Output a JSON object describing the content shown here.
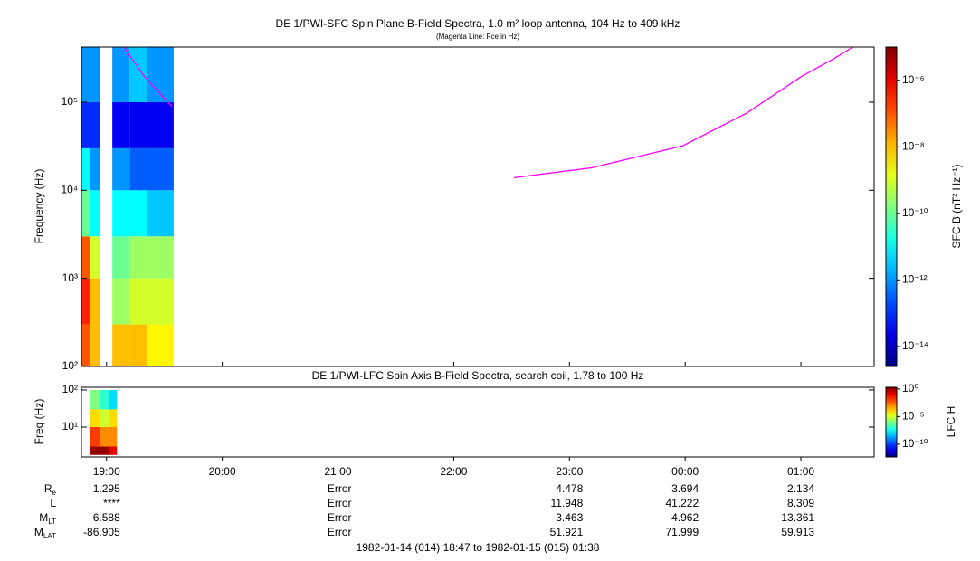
{
  "chart_data": [
    {
      "type": "heatmap",
      "title": "DE 1/PWI-SFC  Spin Plane B-Field Spectra, 1.0 m² loop antenna, 104 Hz to 409 kHz",
      "subtitle": "(Magenta Line: Fce in Hz)",
      "y_label": "Frequency (Hz)",
      "colorbar_label": "SFC B (nT² Hz⁻¹)",
      "log_y": true,
      "xlim": [
        18.783,
        25.633
      ],
      "ylim": [
        100,
        423000
      ],
      "yticks": [
        {
          "value": 100,
          "label": "10²"
        },
        {
          "value": 1000,
          "label": "10³"
        },
        {
          "value": 10000,
          "label": "10⁴"
        },
        {
          "value": 100000,
          "label": "10⁵"
        }
      ],
      "x_edges": [
        18.783,
        18.86,
        18.94,
        19.05,
        19.2,
        19.35,
        19.58
      ],
      "y_edges": [
        100,
        300,
        1000,
        3000,
        10000,
        30000,
        100000,
        423000
      ],
      "z": [
        [
          1e-07,
          3e-07,
          1e-07,
          1e-10,
          1e-11,
          1e-13,
          1e-12
        ],
        [
          1e-08,
          1e-08,
          1e-09,
          1e-11,
          1e-12,
          1e-13,
          1e-12
        ],
        [
          null,
          null,
          null,
          null,
          null,
          null,
          null
        ],
        [
          1e-08,
          3e-10,
          1e-10,
          1e-11,
          1e-12,
          3e-14,
          1e-12
        ],
        [
          1e-08,
          1e-09,
          3e-10,
          1e-11,
          3e-13,
          3e-14,
          3e-12
        ],
        [
          3e-09,
          1e-09,
          3e-10,
          3e-12,
          3e-13,
          3e-14,
          1e-12
        ]
      ],
      "zlim": [
        2.5e-15,
        1e-05
      ],
      "zticks": [
        {
          "value": 1e-14,
          "label": "10⁻¹⁴"
        },
        {
          "value": 1e-12,
          "label": "10⁻¹²"
        },
        {
          "value": 1e-10,
          "label": "10⁻¹⁰"
        },
        {
          "value": 1e-08,
          "label": "10⁻⁸"
        },
        {
          "value": 1e-06,
          "label": "10⁻⁶"
        }
      ],
      "series": [
        {
          "color": "#ff00ff",
          "x": [
            19.15,
            19.33,
            19.567,
            null,
            22.52,
            23.19,
            23.98,
            24.53,
            25.0,
            25.28,
            25.45
          ],
          "values": [
            420000,
            194000,
            89000,
            null,
            13900,
            18000,
            32000,
            75000,
            194000,
            310000,
            423000
          ]
        }
      ]
    },
    {
      "type": "heatmap",
      "title": "DE 1/PWI-LFC  Spin Axis B-Field Spectra, search coil, 1.78 to 100 Hz",
      "y_label": "Freq (Hz)",
      "colorbar_label": "LFC H",
      "log_y": true,
      "xlim": [
        18.783,
        25.633
      ],
      "ylim": [
        1.57,
        118
      ],
      "yticks": [
        {
          "value": 10,
          "label": "10¹"
        },
        {
          "value": 100,
          "label": "10²"
        }
      ],
      "xticks": [
        {
          "value": 19,
          "label": "19:00"
        },
        {
          "value": 20,
          "label": "20:00"
        },
        {
          "value": 21,
          "label": "21:00"
        },
        {
          "value": 22,
          "label": "22:00"
        },
        {
          "value": 23,
          "label": "23:00"
        },
        {
          "value": 24,
          "label": "00:00"
        },
        {
          "value": 25,
          "label": "01:00"
        }
      ],
      "x_edges": [
        18.86,
        18.94,
        19.02,
        19.09
      ],
      "y_edges": [
        1.78,
        3,
        10,
        30,
        100
      ],
      "z": [
        [
          1,
          0.01,
          0.0001,
          1e-06
        ],
        [
          1,
          0.001,
          1e-05,
          1e-07
        ],
        [
          0.1,
          0.001,
          0.0001,
          1e-08
        ]
      ],
      "zlim": [
        5e-13,
        2
      ],
      "zticks": [
        {
          "value": 1e-10,
          "label": "10⁻¹⁰"
        },
        {
          "value": 1e-05,
          "label": "10⁻⁵"
        },
        {
          "value": 1,
          "label": "10⁰"
        }
      ]
    }
  ],
  "ephemeris": {
    "rows": [
      {
        "label": "R",
        "sub": "e",
        "values": [
          1.295,
          null,
          "Error",
          null,
          4.478,
          3.694,
          2.134
        ]
      },
      {
        "label": "L",
        "values": [
          "****",
          null,
          "Error",
          null,
          11.948,
          41.222,
          8.309
        ]
      },
      {
        "label": "M",
        "sub": "LT",
        "values": [
          6.588,
          null,
          "Error",
          null,
          3.463,
          4.962,
          13.361
        ]
      },
      {
        "label": "M",
        "sub": "LAT",
        "values": [
          -86.905,
          null,
          "Error",
          null,
          51.921,
          71.999,
          59.913
        ]
      }
    ],
    "footer": "1982-01-14 (014) 18:47 to 1982-01-15 (015) 01:38"
  }
}
